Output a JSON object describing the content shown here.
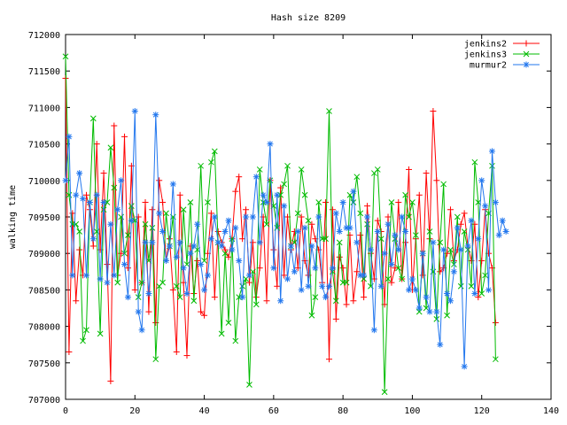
{
  "chart_data": {
    "type": "line",
    "title": "Hash size 8209",
    "xlabel": "",
    "ylabel": "walking time",
    "xlim": [
      0,
      140
    ],
    "ylim": [
      707000,
      712000
    ],
    "xticks": [
      0,
      20,
      40,
      60,
      80,
      100,
      120,
      140
    ],
    "yticks": [
      707000,
      707500,
      708000,
      708500,
      709000,
      709500,
      710000,
      710500,
      711000,
      711500,
      712000
    ],
    "grid": false,
    "legend_position": "top-right",
    "series": [
      {
        "name": "jenkins2",
        "color": "#ff0000",
        "marker": "plus",
        "values": [
          711400,
          707650,
          709550,
          708350,
          709050,
          708700,
          709800,
          709600,
          709100,
          710500,
          709050,
          710100,
          708850,
          707250,
          710750,
          708700,
          709000,
          710600,
          708800,
          710200,
          708500,
          709500,
          708600,
          709700,
          708200,
          709600,
          708050,
          710000,
          709700,
          708900,
          709200,
          708500,
          707650,
          709800,
          708600,
          707600,
          709100,
          708450,
          708900,
          708200,
          708150,
          709000,
          709550,
          708400,
          709300,
          709150,
          709050,
          708950,
          709200,
          709850,
          710050,
          709200,
          709600,
          708600,
          709150,
          708400,
          708800,
          709500,
          708350,
          710000,
          709050,
          708550,
          709900,
          708700,
          709500,
          709050,
          709300,
          708800,
          709500,
          708900,
          708700,
          709400,
          709200,
          709050,
          708600,
          709700,
          707550,
          709600,
          708100,
          708950,
          708800,
          708300,
          709250,
          708350,
          708750,
          709250,
          708400,
          709650,
          709000,
          708650,
          709450,
          709300,
          708300,
          709500,
          708600,
          708800,
          709700,
          708650,
          709150,
          710150,
          708500,
          709200,
          709800,
          708700,
          710100,
          709200,
          710950,
          710000,
          708750,
          708800,
          709000,
          709600,
          708900,
          709050,
          709400,
          709550,
          709100,
          708900,
          709400,
          708400,
          708900,
          709600,
          709000,
          708800,
          708050
        ]
      },
      {
        "name": "jenkins3",
        "color": "#00bb00",
        "marker": "cross",
        "values": [
          711700,
          709800,
          709400,
          709400,
          709300,
          707800,
          707950,
          709700,
          710850,
          709300,
          707900,
          709600,
          709700,
          710450,
          709900,
          708600,
          709500,
          709000,
          709250,
          709650,
          709450,
          708400,
          708600,
          709400,
          708900,
          709350,
          707550,
          708550,
          708600,
          709550,
          709100,
          709500,
          708550,
          708400,
          709600,
          708850,
          709700,
          708350,
          709050,
          710200,
          708900,
          709700,
          710250,
          710400,
          709150,
          707900,
          709000,
          708050,
          709200,
          707800,
          708400,
          708550,
          708650,
          707200,
          708750,
          708300,
          710150,
          709700,
          709400,
          710000,
          709650,
          709350,
          709800,
          709950,
          710200,
          709100,
          709150,
          709550,
          710150,
          709800,
          709450,
          708150,
          708400,
          709700,
          709200,
          709200,
          710950,
          708750,
          708350,
          709150,
          708600,
          708600,
          709800,
          709700,
          710050,
          709550,
          708650,
          709400,
          708550,
          710100,
          710150,
          709200,
          707100,
          708650,
          709700,
          709200,
          708800,
          708650,
          709800,
          709500,
          709700,
          709250,
          708200,
          709000,
          708250,
          709300,
          708750,
          708100,
          709150,
          709950,
          708150,
          709050,
          708850,
          709500,
          708550,
          709300,
          709050,
          708550,
          710250,
          709700,
          708450,
          708700,
          709550,
          710200,
          707550
        ]
      },
      {
        "name": "murmur2",
        "color": "#2277ee",
        "marker": "star",
        "values": [
          710000,
          710600,
          708700,
          709800,
          710100,
          709750,
          708700,
          709700,
          709200,
          709800,
          708650,
          709700,
          708600,
          709400,
          708700,
          709600,
          710000,
          708850,
          708400,
          709450,
          710950,
          708200,
          707950,
          709150,
          708450,
          709150,
          710900,
          709550,
          709300,
          708900,
          709100,
          709950,
          708950,
          709150,
          708800,
          708450,
          709000,
          709100,
          709400,
          708850,
          708500,
          708700,
          709200,
          709500,
          709150,
          709100,
          709300,
          709450,
          709050,
          709350,
          708900,
          708400,
          709500,
          708700,
          709500,
          710050,
          709150,
          709800,
          709700,
          710500,
          708800,
          709800,
          708350,
          709650,
          708650,
          709100,
          708750,
          709300,
          708500,
          709350,
          708550,
          709100,
          708800,
          709500,
          708550,
          708400,
          708550,
          708800,
          709550,
          709300,
          709700,
          709350,
          709350,
          709850,
          709150,
          708700,
          708700,
          709500,
          709050,
          707950,
          709300,
          708550,
          709000,
          709400,
          708850,
          709250,
          709050,
          709500,
          709300,
          708500,
          708650,
          708500,
          708250,
          709000,
          708400,
          708200,
          709150,
          708200,
          707750,
          709050,
          708450,
          708350,
          708750,
          709350,
          709050,
          707450,
          709100,
          709450,
          708450,
          709200,
          710000,
          709650,
          708500,
          710400,
          709700,
          709250,
          709450,
          709300
        ]
      }
    ]
  }
}
